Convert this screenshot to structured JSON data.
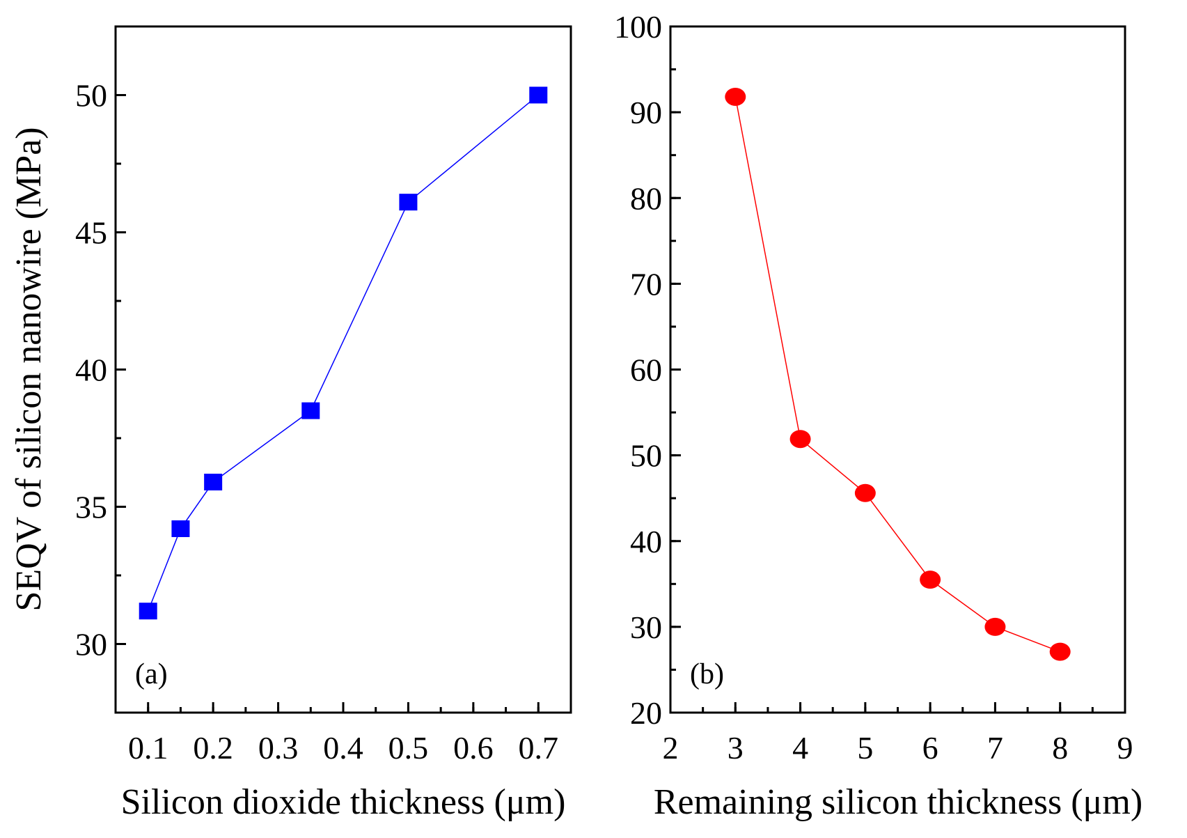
{
  "chart_data": [
    {
      "type": "line",
      "panel_label": "(a)",
      "xlabel": "Silicon dioxide thickness (μm)",
      "ylabel": "SEQV of silicon nanowire (MPa)",
      "xlim": [
        0.05,
        0.75
      ],
      "ylim": [
        27.5,
        52.5
      ],
      "xticks": [
        0.1,
        0.2,
        0.3,
        0.4,
        0.5,
        0.6,
        0.7
      ],
      "xtick_labels": [
        "0.1",
        "0.2",
        "0.3",
        "0.4",
        "0.5",
        "0.6",
        "0.7"
      ],
      "yticks": [
        30,
        35,
        40,
        45,
        50
      ],
      "ytick_labels": [
        "30",
        "35",
        "40",
        "45",
        "50"
      ],
      "x_minor_step": 0.05,
      "y_minor_step": 2.5,
      "marker": "square",
      "color": "#0000FF",
      "x": [
        0.1,
        0.15,
        0.2,
        0.35,
        0.5,
        0.7
      ],
      "y": [
        31.2,
        34.2,
        35.9,
        38.5,
        46.1,
        50.0
      ],
      "grid": false
    },
    {
      "type": "line",
      "panel_label": "(b)",
      "xlabel": "Remaining silicon thickness (μm)",
      "ylabel": "",
      "xlim": [
        2,
        9
      ],
      "ylim": [
        20,
        100
      ],
      "xticks": [
        2,
        3,
        4,
        5,
        6,
        7,
        8,
        9
      ],
      "xtick_labels": [
        "2",
        "3",
        "4",
        "5",
        "6",
        "7",
        "8",
        "9"
      ],
      "yticks": [
        20,
        30,
        40,
        50,
        60,
        70,
        80,
        90,
        100
      ],
      "ytick_labels": [
        "20",
        "30",
        "40",
        "50",
        "60",
        "70",
        "80",
        "90",
        "100"
      ],
      "x_minor_step": 0.5,
      "y_minor_step": 5,
      "marker": "circle",
      "color": "#FF0000",
      "x": [
        3,
        4,
        5,
        6,
        7,
        8
      ],
      "y": [
        91.8,
        51.9,
        45.6,
        35.5,
        30.0,
        27.1
      ],
      "grid": false
    }
  ]
}
